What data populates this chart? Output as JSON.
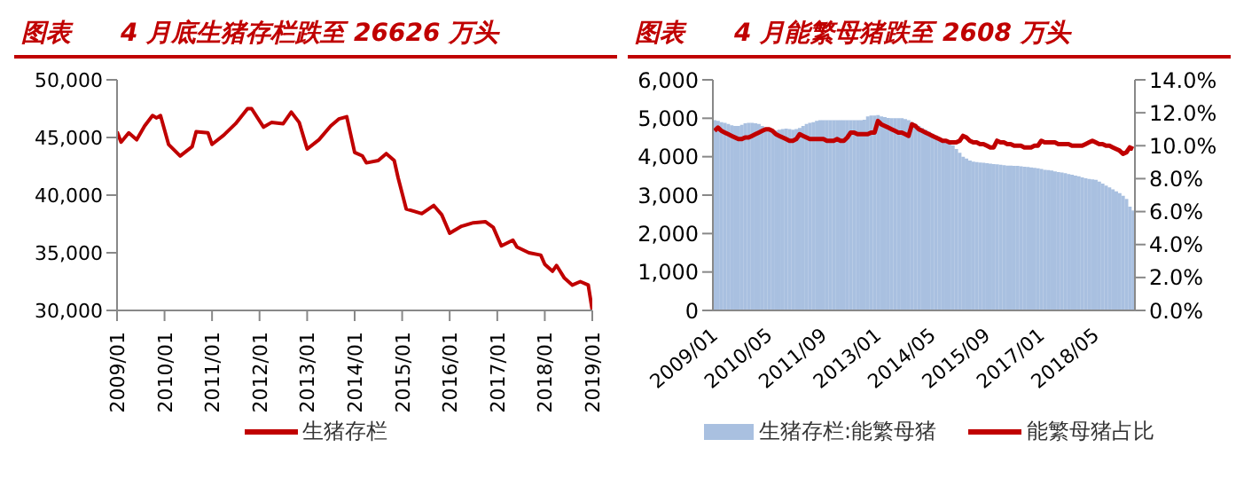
{
  "chart_data": [
    {
      "type": "line",
      "title": "图表　　4 月底生猪存栏跌至 26626 万头",
      "legend": "bottom",
      "x": [
        "2009-01",
        "2009-02",
        "2009-04",
        "2009-06",
        "2009-08",
        "2009-10",
        "2009-11",
        "2009-12",
        "2010-02",
        "2010-05",
        "2010-08",
        "2010-09",
        "2010-12",
        "2011-01",
        "2011-04",
        "2011-07",
        "2011-10",
        "2011-11",
        "2012-02",
        "2012-04",
        "2012-07",
        "2012-09",
        "2012-11",
        "2013-01",
        "2013-04",
        "2013-07",
        "2013-09",
        "2013-11",
        "2014-01",
        "2014-03",
        "2014-04",
        "2014-07",
        "2014-09",
        "2014-11",
        "2014-12",
        "2015-02",
        "2015-04",
        "2015-06",
        "2015-09",
        "2015-11",
        "2016-01",
        "2016-04",
        "2016-07",
        "2016-10",
        "2016-12",
        "2017-02",
        "2017-05",
        "2017-06",
        "2017-09",
        "2017-12",
        "2018-01",
        "2018-03",
        "2018-04",
        "2018-06",
        "2018-08",
        "2018-10",
        "2018-12",
        "2019-01"
      ],
      "series": [
        {
          "name": "生猪存栏",
          "color": "#c00000",
          "values": [
            45500,
            44600,
            45400,
            44800,
            46000,
            46900,
            46700,
            46900,
            44400,
            43400,
            44200,
            45500,
            45400,
            44400,
            45200,
            46200,
            47500,
            47500,
            45900,
            46300,
            46200,
            47200,
            46300,
            44000,
            44800,
            46000,
            46600,
            46800,
            43700,
            43400,
            42800,
            43000,
            43600,
            43000,
            41500,
            38800,
            38600,
            38400,
            39100,
            38300,
            36700,
            37300,
            37600,
            37700,
            37200,
            35600,
            36100,
            35500,
            35000,
            34800,
            34000,
            33400,
            33900,
            32800,
            32200,
            32500,
            32200,
            30000
          ]
        }
      ],
      "xlim": [
        "2009-01",
        "2019-01"
      ],
      "xticks": [
        {
          "value": "2009-01",
          "label": "2009/01"
        },
        {
          "value": "2010-01",
          "label": "2010/01"
        },
        {
          "value": "2011-01",
          "label": "2011/01"
        },
        {
          "value": "2012-01",
          "label": "2012/01"
        },
        {
          "value": "2013-01",
          "label": "2013/01"
        },
        {
          "value": "2014-01",
          "label": "2014/01"
        },
        {
          "value": "2015-01",
          "label": "2015/01"
        },
        {
          "value": "2016-01",
          "label": "2016/01"
        },
        {
          "value": "2017-01",
          "label": "2017/01"
        },
        {
          "value": "2018-01",
          "label": "2018/01"
        },
        {
          "value": "2019-01",
          "label": "2019/01"
        }
      ],
      "ylim": [
        30000,
        50000
      ],
      "yticks": [
        {
          "value": 30000,
          "label": "30,000"
        },
        {
          "value": 35000,
          "label": "35,000"
        },
        {
          "value": 40000,
          "label": "40,000"
        },
        {
          "value": 45000,
          "label": "45,000"
        },
        {
          "value": 50000,
          "label": "50,000"
        }
      ]
    },
    {
      "type": "bar",
      "title": "图表　　4 月能繁母猪跌至 2608 万头",
      "legend": "bottom",
      "categories": [
        "2009/01",
        null,
        null,
        null,
        null,
        null,
        null,
        null,
        null,
        null,
        null,
        null,
        null,
        null,
        null,
        null,
        "2010/05",
        null,
        null,
        null,
        null,
        null,
        null,
        null,
        null,
        null,
        null,
        null,
        null,
        null,
        null,
        null,
        "2011/09",
        null,
        null,
        null,
        null,
        null,
        null,
        null,
        null,
        null,
        null,
        null,
        null,
        null,
        null,
        null,
        "2013/01",
        null,
        null,
        null,
        null,
        null,
        null,
        null,
        null,
        null,
        null,
        null,
        null,
        null,
        null,
        null,
        "2014/05",
        null,
        null,
        null,
        null,
        null,
        null,
        null,
        null,
        null,
        null,
        null,
        null,
        null,
        null,
        null,
        "2015/09",
        null,
        null,
        null,
        null,
        null,
        null,
        null,
        null,
        null,
        null,
        null,
        null,
        null,
        null,
        null,
        "2017/01",
        null,
        null,
        null,
        null,
        null,
        null,
        null,
        null,
        null,
        null,
        null,
        null,
        null,
        null,
        null,
        "2018/05",
        null,
        null,
        null,
        null,
        null,
        null,
        null,
        null,
        null,
        null,
        null
      ],
      "series": [
        {
          "name": "生猪存栏:能繁母猪",
          "type": "bar",
          "color": "#a9c0e0",
          "values": [
            4950,
            4930,
            4900,
            4880,
            4850,
            4820,
            4800,
            4800,
            4830,
            4870,
            4880,
            4880,
            4870,
            4850,
            4800,
            4750,
            4700,
            4650,
            4680,
            4700,
            4720,
            4730,
            4720,
            4700,
            4720,
            4750,
            4800,
            4850,
            4880,
            4900,
            4930,
            4950,
            4950,
            4950,
            4950,
            4950,
            4950,
            4950,
            4950,
            4950,
            4950,
            4950,
            4950,
            4950,
            4960,
            5050,
            5070,
            5070,
            5080,
            5050,
            5030,
            5010,
            5000,
            5000,
            5000,
            5000,
            4980,
            4950,
            4900,
            4850,
            4800,
            4750,
            4700,
            4650,
            4600,
            4550,
            4500,
            4450,
            4400,
            4350,
            4300,
            4200,
            4100,
            4000,
            3950,
            3900,
            3870,
            3860,
            3850,
            3840,
            3830,
            3820,
            3810,
            3800,
            3790,
            3780,
            3770,
            3770,
            3760,
            3760,
            3750,
            3740,
            3730,
            3720,
            3710,
            3700,
            3680,
            3660,
            3650,
            3640,
            3620,
            3600,
            3590,
            3570,
            3550,
            3530,
            3510,
            3490,
            3460,
            3440,
            3420,
            3410,
            3400,
            3350,
            3300,
            3250,
            3200,
            3150,
            3100,
            3050,
            2980,
            2900,
            2700,
            2600
          ]
        },
        {
          "name": "能繁母猪占比",
          "type": "line",
          "axis": "y2",
          "color": "#c00000",
          "values": [
            10.9,
            11.1,
            10.9,
            10.8,
            10.7,
            10.6,
            10.5,
            10.4,
            10.4,
            10.5,
            10.5,
            10.6,
            10.7,
            10.8,
            10.9,
            11.0,
            11.0,
            10.9,
            10.7,
            10.6,
            10.5,
            10.4,
            10.3,
            10.3,
            10.4,
            10.7,
            10.6,
            10.5,
            10.4,
            10.4,
            10.4,
            10.4,
            10.4,
            10.3,
            10.3,
            10.3,
            10.4,
            10.3,
            10.3,
            10.5,
            10.8,
            10.8,
            10.7,
            10.7,
            10.7,
            10.7,
            10.8,
            10.8,
            11.5,
            11.3,
            11.2,
            11.1,
            11.0,
            10.9,
            10.8,
            10.8,
            10.7,
            10.6,
            11.3,
            11.2,
            11.0,
            10.9,
            10.8,
            10.7,
            10.6,
            10.5,
            10.4,
            10.3,
            10.3,
            10.2,
            10.2,
            10.2,
            10.3,
            10.6,
            10.5,
            10.3,
            10.2,
            10.2,
            10.1,
            10.1,
            10.0,
            9.9,
            9.9,
            10.3,
            10.2,
            10.2,
            10.1,
            10.1,
            10.0,
            10.0,
            10.0,
            9.9,
            9.9,
            9.9,
            10.0,
            10.0,
            10.3,
            10.2,
            10.2,
            10.2,
            10.2,
            10.1,
            10.1,
            10.1,
            10.1,
            10.0,
            10.0,
            10.0,
            10.0,
            10.1,
            10.2,
            10.3,
            10.2,
            10.1,
            10.1,
            10.0,
            10.0,
            9.9,
            9.8,
            9.7,
            9.5,
            9.6,
            9.9,
            9.8
          ]
        }
      ],
      "ylim": [
        0,
        6000
      ],
      "yticks": [
        0,
        {
          "value": 1000,
          "label": "1,000"
        },
        {
          "value": 2000,
          "label": "2,000"
        },
        {
          "value": 3000,
          "label": "3,000"
        },
        {
          "value": 4000,
          "label": "4,000"
        },
        {
          "value": 5000,
          "label": "5,000"
        },
        {
          "value": 6000,
          "label": "6,000"
        }
      ],
      "y2lim": [
        0,
        14
      ],
      "y2ticks": [
        {
          "value": 0,
          "label": "0.0%"
        },
        {
          "value": 2,
          "label": "2.0%"
        },
        {
          "value": 4,
          "label": "4.0%"
        },
        {
          "value": 6,
          "label": "6.0%"
        },
        {
          "value": 8,
          "label": "8.0%"
        },
        {
          "value": 10,
          "label": "10.0%"
        },
        {
          "value": 12,
          "label": "12.0%"
        },
        {
          "value": 14,
          "label": "14.0%"
        }
      ]
    }
  ]
}
